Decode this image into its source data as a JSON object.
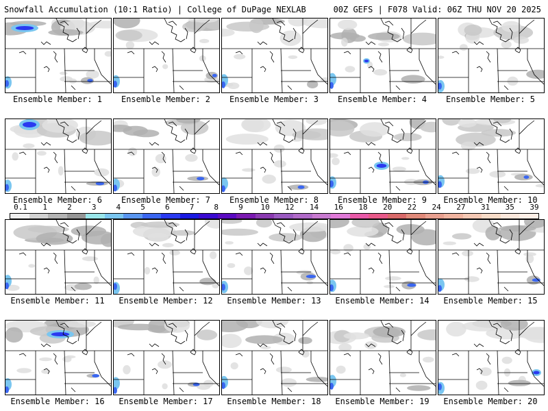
{
  "header": {
    "left_title": "Snowfall Accumulation (10:1 Ratio) | College of DuPage NEXLAB",
    "right_title": "00Z GEFS | F078 Valid: 06Z THU NOV 20 2025"
  },
  "member_label_prefix": "Ensemble Member:",
  "members": [
    "1",
    "2",
    "3",
    "4",
    "5",
    "6",
    "7",
    "8",
    "9",
    "10",
    "11",
    "12",
    "13",
    "14",
    "15",
    "16",
    "17",
    "18",
    "19",
    "20"
  ],
  "colorbar": {
    "labels": [
      "0.1",
      "1",
      "2",
      "3",
      "4",
      "5",
      "6",
      "7",
      "8",
      "9",
      "10",
      "12",
      "14",
      "16",
      "18",
      "20",
      "22",
      "24",
      "27",
      "31",
      "35",
      "39"
    ],
    "colors": [
      "#f0f0f0",
      "#d2d2d2",
      "#b4b4b4",
      "#969696",
      "#9ae6ea",
      "#7ac6f0",
      "#5a96f0",
      "#3a66f0",
      "#2a3af0",
      "#1a1ae0",
      "#3a0ad0",
      "#5a0ac0",
      "#7a1ab0",
      "#8a3ab0",
      "#9a5ac0",
      "#b06ac8",
      "#c87ad0",
      "#e07ad8",
      "#e85aa8",
      "#e85a8a",
      "#d86a6a",
      "#e08a7a",
      "#e8a090",
      "#f0b4a0",
      "#f4c8b4",
      "#f8dcc8",
      "#fce8dc",
      "#fff0e8"
    ]
  }
}
